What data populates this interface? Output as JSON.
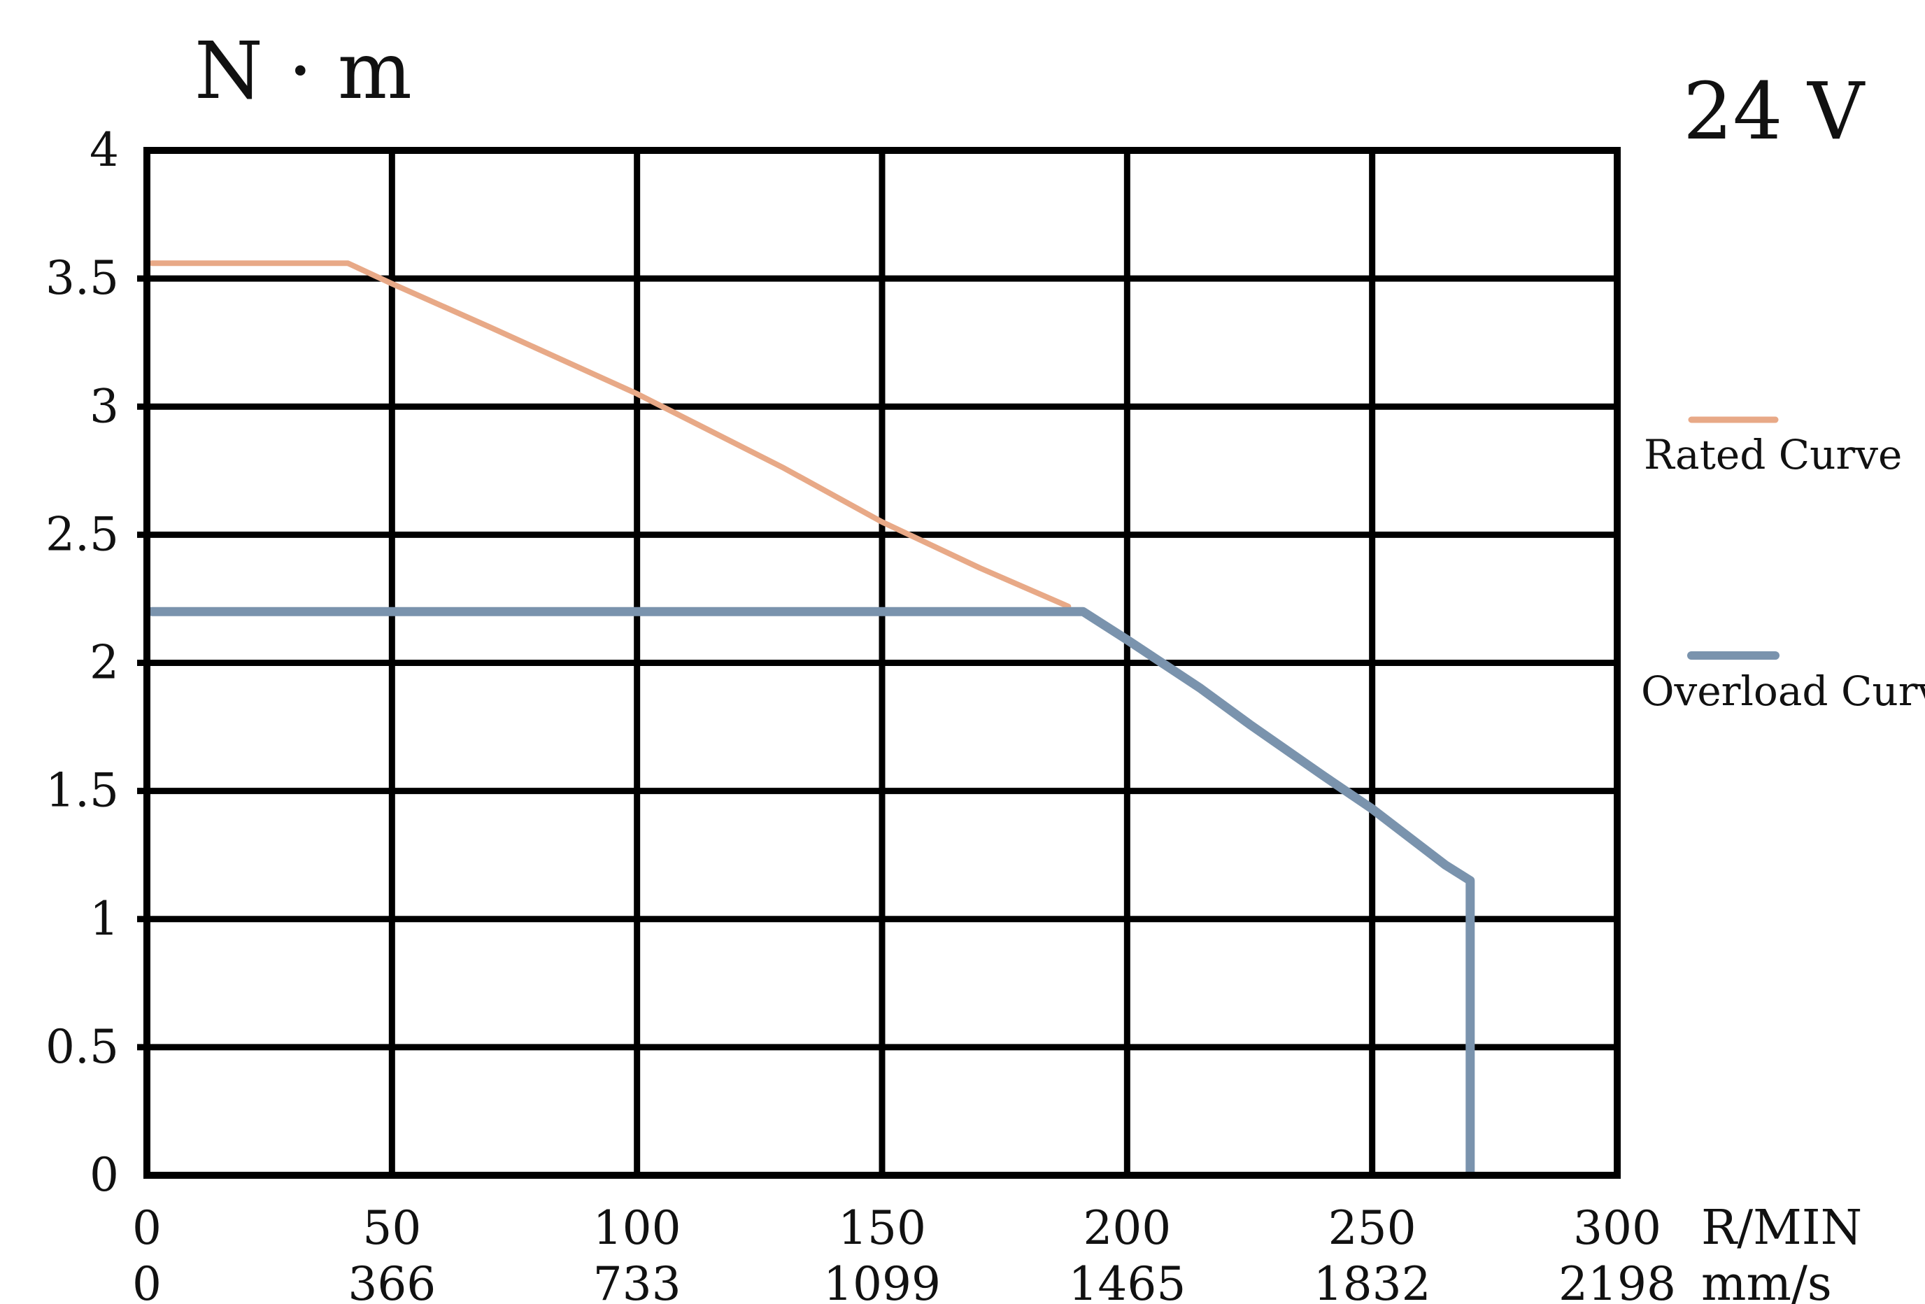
{
  "chart_data": {
    "type": "line",
    "title": "",
    "ylabel": "N · m",
    "voltage_label": "24 V",
    "xlim": [
      0,
      300
    ],
    "ylim": [
      0,
      4
    ],
    "grid": true,
    "legend_position": "right",
    "y_ticks": [
      "0",
      "0.5",
      "1",
      "1.5",
      "2",
      "2.5",
      "3",
      "3.5",
      "4"
    ],
    "x_ticks_primary": [
      "0",
      "50",
      "100",
      "150",
      "200",
      "250",
      "300"
    ],
    "x_ticks_secondary": [
      "0",
      "366",
      "733",
      "1099",
      "1465",
      "1832",
      "2198"
    ],
    "x_unit_primary": "R/MIN",
    "x_unit_secondary": "mm/s",
    "series": [
      {
        "name": "Rated Curve",
        "color": "#e8a987",
        "points": [
          [
            1,
            3.56
          ],
          [
            41,
            3.56
          ],
          [
            50,
            3.48
          ],
          [
            70,
            3.31
          ],
          [
            100,
            3.05
          ],
          [
            130,
            2.76
          ],
          [
            150,
            2.55
          ],
          [
            170,
            2.37
          ],
          [
            188,
            2.22
          ]
        ]
      },
      {
        "name": "Overload Curve",
        "color": "#7a93ad",
        "points": [
          [
            1,
            2.2
          ],
          [
            191,
            2.2
          ],
          [
            200,
            2.09
          ],
          [
            215,
            1.9
          ],
          [
            225,
            1.76
          ],
          [
            240,
            1.56
          ],
          [
            250,
            1.43
          ],
          [
            265,
            1.21
          ],
          [
            270,
            1.15
          ],
          [
            270,
            0.01
          ]
        ]
      }
    ]
  }
}
